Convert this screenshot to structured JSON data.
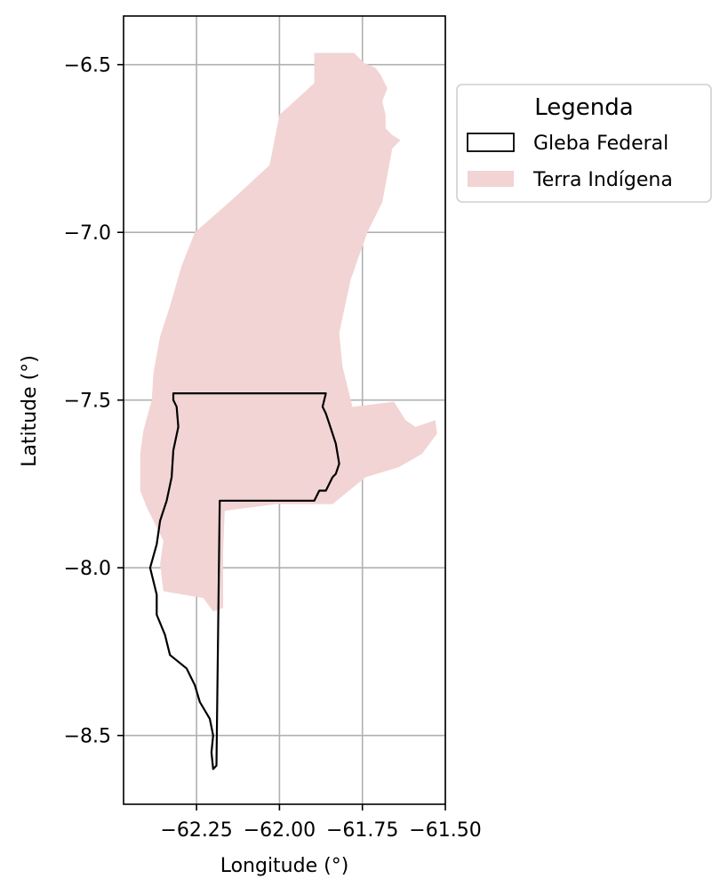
{
  "chart_data": {
    "type": "map",
    "xlabel": "Longitude (°)",
    "ylabel": "Latitude (°)",
    "xlim": [
      -62.47,
      -61.5
    ],
    "ylim": [
      -8.705,
      -6.355
    ],
    "x_ticks": [
      -62.25,
      -62.0,
      -61.75,
      -61.5
    ],
    "x_tick_labels": [
      "−62.25",
      "−62.00",
      "−61.75",
      "−61.50"
    ],
    "y_ticks": [
      -6.5,
      -7.0,
      -7.5,
      -8.0,
      -8.5
    ],
    "y_tick_labels": [
      "−6.5",
      "−7.0",
      "−7.5",
      "−8.0",
      "−8.5"
    ],
    "grid": true,
    "legend": {
      "title": "Legenda",
      "placement": "upper-right-outside",
      "entries": [
        {
          "label": "Gleba Federal",
          "style": "outline",
          "color": "#000000"
        },
        {
          "label": "Terra Indígena",
          "style": "fill",
          "color": "#f2d4d4"
        }
      ]
    },
    "colors": {
      "terra_indigena_fill": "#f2d4d4",
      "gleba_edge": "#000000",
      "grid": "#b0b0b0"
    },
    "layers": [
      {
        "name": "Terra Indígena",
        "coords": [
          [
            -61.895,
            -6.465
          ],
          [
            -61.775,
            -6.465
          ],
          [
            -61.745,
            -6.495
          ],
          [
            -61.71,
            -6.51
          ],
          [
            -61.695,
            -6.53
          ],
          [
            -61.675,
            -6.57
          ],
          [
            -61.69,
            -6.61
          ],
          [
            -61.68,
            -6.65
          ],
          [
            -61.68,
            -6.69
          ],
          [
            -61.66,
            -6.71
          ],
          [
            -61.635,
            -6.725
          ],
          [
            -61.66,
            -6.75
          ],
          [
            -61.675,
            -6.83
          ],
          [
            -61.69,
            -6.91
          ],
          [
            -61.735,
            -7.0
          ],
          [
            -61.785,
            -7.14
          ],
          [
            -61.82,
            -7.3
          ],
          [
            -61.81,
            -7.4
          ],
          [
            -61.78,
            -7.52
          ],
          [
            -61.655,
            -7.505
          ],
          [
            -61.62,
            -7.56
          ],
          [
            -61.59,
            -7.58
          ],
          [
            -61.53,
            -7.56
          ],
          [
            -61.525,
            -7.6
          ],
          [
            -61.57,
            -7.66
          ],
          [
            -61.64,
            -7.7
          ],
          [
            -61.74,
            -7.73
          ],
          [
            -61.84,
            -7.81
          ],
          [
            -62.01,
            -7.81
          ],
          [
            -62.165,
            -7.83
          ],
          [
            -62.17,
            -7.95
          ],
          [
            -62.17,
            -8.12
          ],
          [
            -62.2,
            -8.13
          ],
          [
            -62.23,
            -8.09
          ],
          [
            -62.29,
            -8.08
          ],
          [
            -62.35,
            -8.07
          ],
          [
            -62.36,
            -7.99
          ],
          [
            -62.35,
            -7.92
          ],
          [
            -62.38,
            -7.86
          ],
          [
            -62.4,
            -7.82
          ],
          [
            -62.42,
            -7.77
          ],
          [
            -62.42,
            -7.66
          ],
          [
            -62.41,
            -7.59
          ],
          [
            -62.385,
            -7.5
          ],
          [
            -62.38,
            -7.42
          ],
          [
            -62.36,
            -7.31
          ],
          [
            -62.33,
            -7.22
          ],
          [
            -62.295,
            -7.1
          ],
          [
            -62.255,
            -7.0
          ],
          [
            -62.14,
            -6.9
          ],
          [
            -62.03,
            -6.8
          ],
          [
            -62.0,
            -6.65
          ],
          [
            -61.895,
            -6.555
          ]
        ]
      },
      {
        "name": "Gleba Federal",
        "coords": [
          [
            -62.32,
            -7.48
          ],
          [
            -61.86,
            -7.48
          ],
          [
            -61.87,
            -7.52
          ],
          [
            -61.86,
            -7.54
          ],
          [
            -61.85,
            -7.57
          ],
          [
            -61.84,
            -7.6
          ],
          [
            -61.83,
            -7.63
          ],
          [
            -61.825,
            -7.66
          ],
          [
            -61.82,
            -7.69
          ],
          [
            -61.83,
            -7.72
          ],
          [
            -61.84,
            -7.73
          ],
          [
            -61.85,
            -7.75
          ],
          [
            -61.86,
            -7.77
          ],
          [
            -61.88,
            -7.77
          ],
          [
            -61.895,
            -7.8
          ],
          [
            -62.18,
            -7.8
          ],
          [
            -62.19,
            -8.59
          ],
          [
            -62.2,
            -8.6
          ],
          [
            -62.205,
            -8.55
          ],
          [
            -62.2,
            -8.5
          ],
          [
            -62.21,
            -8.45
          ],
          [
            -62.24,
            -8.4
          ],
          [
            -62.255,
            -8.35
          ],
          [
            -62.28,
            -8.3
          ],
          [
            -62.33,
            -8.26
          ],
          [
            -62.345,
            -8.2
          ],
          [
            -62.37,
            -8.14
          ],
          [
            -62.37,
            -8.08
          ],
          [
            -62.39,
            -8.0
          ],
          [
            -62.37,
            -7.93
          ],
          [
            -62.36,
            -7.86
          ],
          [
            -62.34,
            -7.8
          ],
          [
            -62.325,
            -7.73
          ],
          [
            -62.32,
            -7.65
          ],
          [
            -62.305,
            -7.58
          ],
          [
            -62.31,
            -7.52
          ],
          [
            -62.32,
            -7.5
          ]
        ]
      }
    ]
  }
}
